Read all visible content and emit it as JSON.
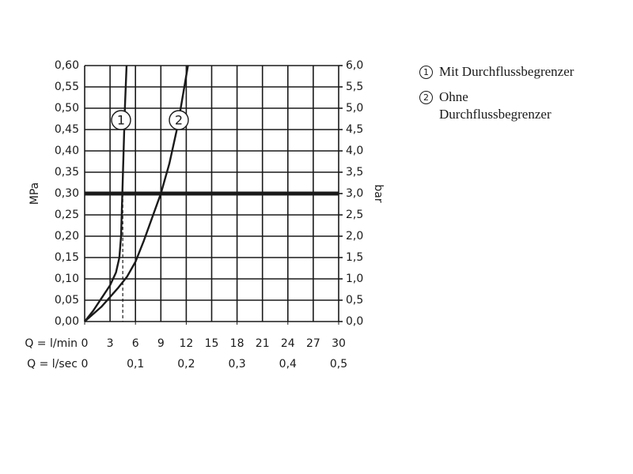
{
  "chart_data": {
    "type": "line",
    "x_label": "Q = l/min",
    "x2_label": "Q = l/sec",
    "y_label": "MPa",
    "y2_label": "bar",
    "xlim": [
      0,
      30
    ],
    "xticks": [
      0,
      3,
      6,
      9,
      12,
      15,
      18,
      21,
      24,
      27,
      30
    ],
    "x2lim": [
      0,
      0.5
    ],
    "x2ticks": [
      0,
      {
        "value": 0.1,
        "label": "0,1"
      },
      {
        "value": 0.2,
        "label": "0,2"
      },
      {
        "value": 0.3,
        "label": "0,3"
      },
      {
        "value": 0.4,
        "label": "0,4"
      },
      {
        "value": 0.5,
        "label": "0,5"
      }
    ],
    "ylim": [
      0,
      0.6
    ],
    "yticks": [
      {
        "value": 0,
        "label": "0,00"
      },
      {
        "value": 0.05,
        "label": "0,05"
      },
      {
        "value": 0.1,
        "label": "0,10"
      },
      {
        "value": 0.15,
        "label": "0,15"
      },
      {
        "value": 0.2,
        "label": "0,20"
      },
      {
        "value": 0.25,
        "label": "0,25"
      },
      {
        "value": 0.3,
        "label": "0,30"
      },
      {
        "value": 0.35,
        "label": "0,35"
      },
      {
        "value": 0.4,
        "label": "0,40"
      },
      {
        "value": 0.45,
        "label": "0,45"
      },
      {
        "value": 0.5,
        "label": "0,50"
      },
      {
        "value": 0.55,
        "label": "0,55"
      },
      {
        "value": 0.6,
        "label": "0,60"
      }
    ],
    "y2lim": [
      0,
      6
    ],
    "y2ticks": [
      {
        "value": 0,
        "label": "0,0"
      },
      {
        "value": 0.5,
        "label": "0,5"
      },
      {
        "value": 1,
        "label": "1,0"
      },
      {
        "value": 1.5,
        "label": "1,5"
      },
      {
        "value": 2,
        "label": "2,0"
      },
      {
        "value": 2.5,
        "label": "2,5"
      },
      {
        "value": 3,
        "label": "3,0"
      },
      {
        "value": 3.5,
        "label": "3,5"
      },
      {
        "value": 4,
        "label": "4,0"
      },
      {
        "value": 4.5,
        "label": "4,5"
      },
      {
        "value": 5,
        "label": "5,0"
      },
      {
        "value": 5.5,
        "label": "5,5"
      },
      {
        "value": 6,
        "label": "6,0"
      }
    ],
    "grid": true,
    "reference_y": 0.3,
    "series": [
      {
        "name": "Mit Durchflussbegrenzer",
        "marker": "1",
        "color": "#1a1a1a",
        "x_at_reference": 4.5,
        "x": [
          0,
          1,
          2,
          3,
          3.7,
          4.1,
          4.3,
          4.45,
          4.6,
          4.75,
          4.95
        ],
        "values": [
          0,
          0.025,
          0.055,
          0.085,
          0.115,
          0.15,
          0.2,
          0.3,
          0.4,
          0.5,
          0.6
        ]
      },
      {
        "name": "Ohne Durchflussbegrenzer",
        "marker": "2",
        "color": "#1a1a1a",
        "x_at_reference": 9,
        "x": [
          0,
          2,
          4,
          5,
          6,
          7,
          8,
          9,
          10,
          11,
          12.2
        ],
        "values": [
          0,
          0.035,
          0.08,
          0.105,
          0.14,
          0.19,
          0.245,
          0.3,
          0.37,
          0.46,
          0.6
        ]
      }
    ]
  }
}
